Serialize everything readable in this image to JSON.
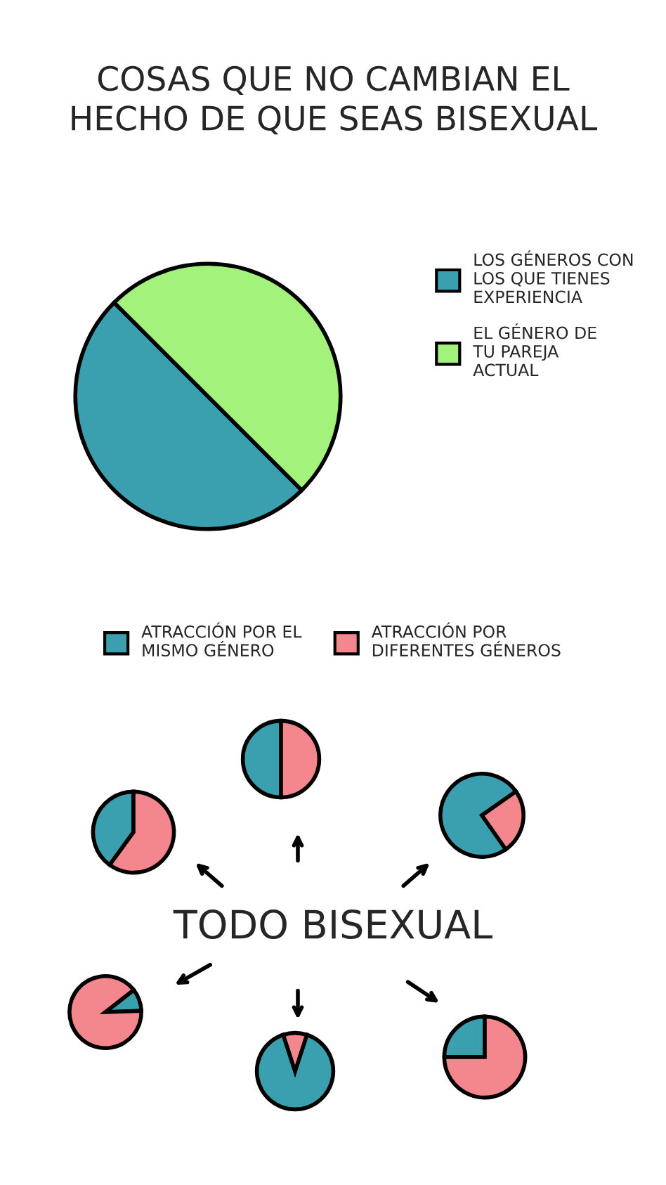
{
  "chart_data": [
    {
      "type": "pie",
      "title": "COSAS QUE NO CAMBIAN EL\nHECHO DE QUE SEAS BISEXUAL",
      "categories": [
        "LOS GÉNEROS CON\nLOS QUE TIENES\nEXPERIENCIA",
        "EL GÉNERO DE\nTU PAREJA\nACTUAL"
      ],
      "values": [
        50,
        50
      ],
      "colors": [
        "#3a9fae",
        "#a3f27c"
      ],
      "legend": "right"
    },
    {
      "type": "pie",
      "categories": [
        "ATRACCIÓN POR EL\nMISMO GÉNERO",
        "ATRACCIÓN POR\nDIFERENTES GÉNEROS"
      ],
      "values": [
        50,
        50
      ],
      "colors": [
        "#3a9fae",
        "#f4878e"
      ],
      "legend": "top",
      "annotations": [
        "TODO BISEXUAL"
      ]
    },
    {
      "type": "pie",
      "categories": [
        null,
        null
      ],
      "values": [
        40,
        60
      ],
      "colors": [
        "#3a9fae",
        "#f4878e"
      ]
    },
    {
      "type": "pie",
      "categories": [
        null,
        null
      ],
      "values": [
        75,
        25
      ],
      "colors": [
        "#3a9fae",
        "#f4878e"
      ]
    },
    {
      "type": "pie",
      "categories": [
        null,
        null
      ],
      "values": [
        10,
        90
      ],
      "colors": [
        "#3a9fae",
        "#f4878e"
      ]
    },
    {
      "type": "pie",
      "categories": [
        null,
        null
      ],
      "values": [
        90,
        10
      ],
      "colors": [
        "#3a9fae",
        "#f4878e"
      ]
    },
    {
      "type": "pie",
      "categories": [
        null,
        null
      ],
      "values": [
        25,
        75
      ],
      "colors": [
        "#3a9fae",
        "#f4878e"
      ]
    }
  ]
}
